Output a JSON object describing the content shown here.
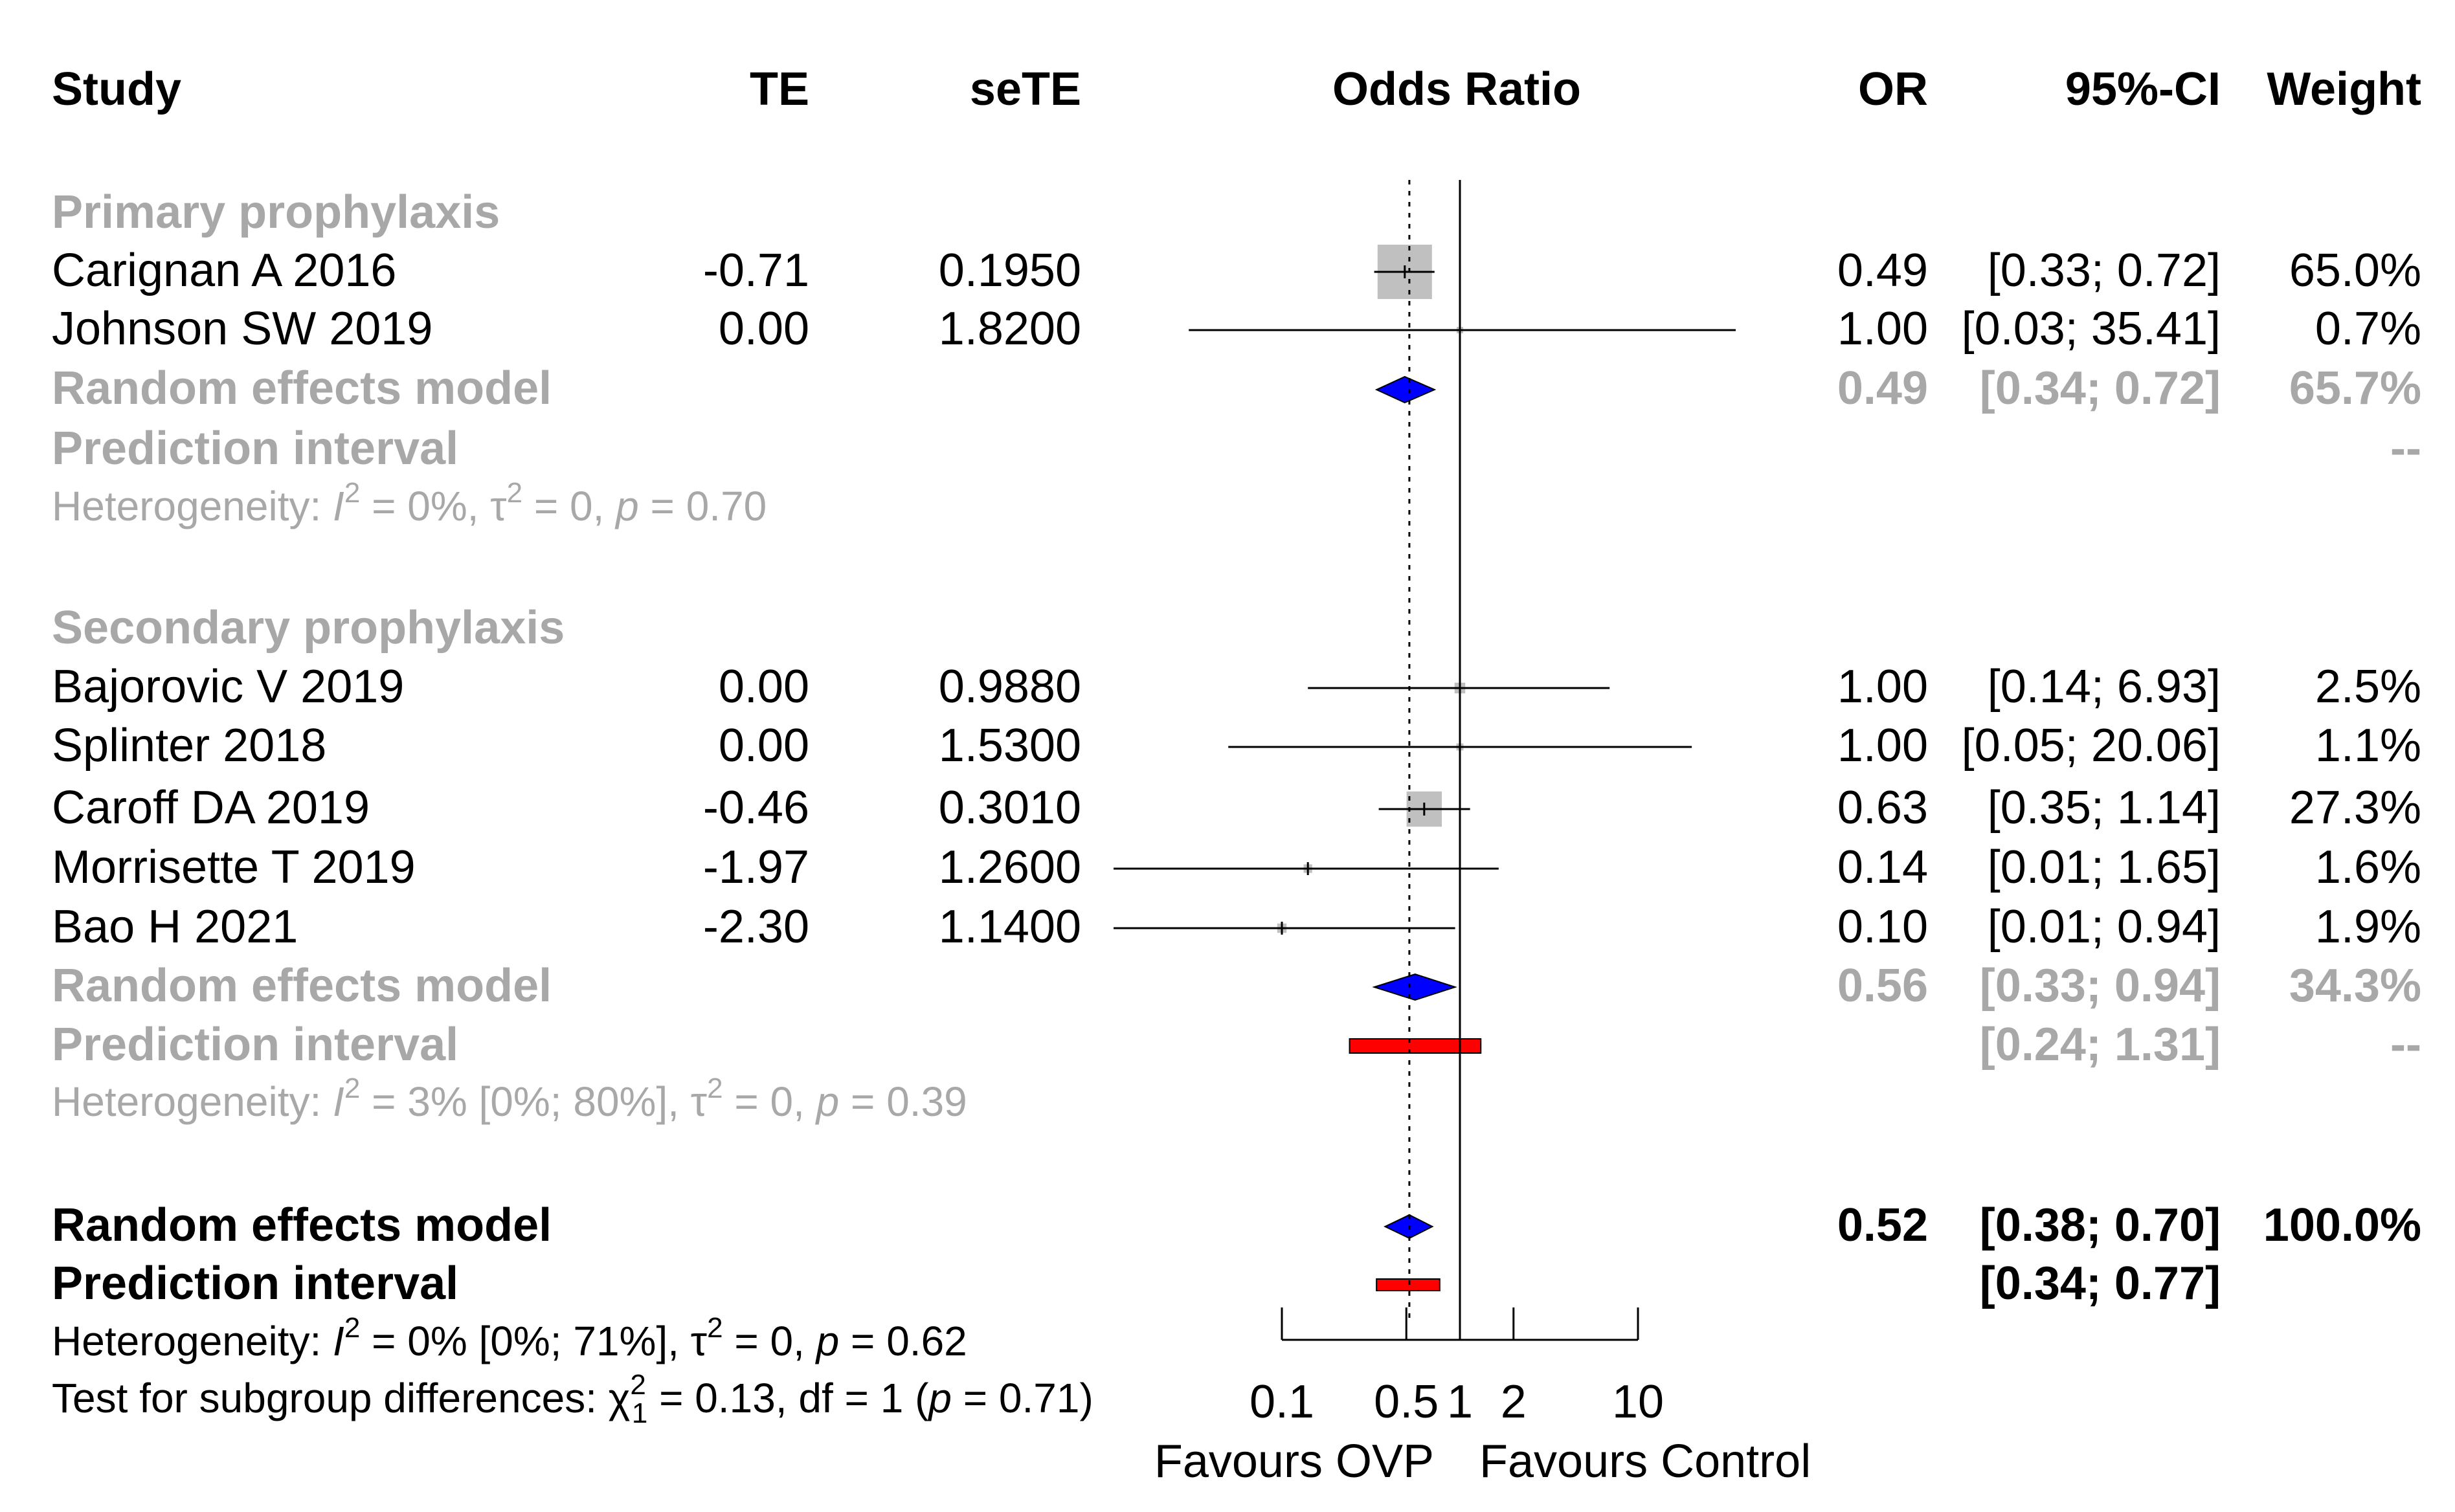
{
  "chart_data": {
    "type": "forest",
    "title": "",
    "columns": {
      "study": "Study",
      "te": "TE",
      "sete": "seTE",
      "odds_ratio": "Odds Ratio",
      "or": "OR",
      "ci": "95%-CI",
      "weight": "Weight"
    },
    "x_scale": "log",
    "xlim": [
      0.1,
      10
    ],
    "reference_value": 1,
    "overall_estimate": 0.52,
    "axis_ticks": [
      0.1,
      0.5,
      1,
      2,
      10
    ],
    "axis_tick_labels": [
      "0.1",
      "0.5",
      "1",
      "2",
      "10"
    ],
    "favours_left": "Favours OVP",
    "favours_right": "Favours Control",
    "groups": [
      {
        "name": "Primary prophylaxis",
        "studies": [
          {
            "study": "Carignan A 2016",
            "te": "-0.71",
            "sete": "0.1950",
            "or": 0.49,
            "lower": 0.33,
            "upper": 0.72,
            "or_text": "0.49",
            "ci_text": "[0.33;  0.72]",
            "weight": "65.0%",
            "weight_value": 65.0
          },
          {
            "study": "Johnson SW 2019",
            "te": "0.00",
            "sete": "1.8200",
            "or": 1.0,
            "lower": 0.03,
            "upper": 35.41,
            "or_text": "1.00",
            "ci_text": "[0.03; 35.41]",
            "weight": "0.7%",
            "weight_value": 0.7
          }
        ],
        "summary": {
          "label": "Random effects model",
          "or": 0.49,
          "lower": 0.34,
          "upper": 0.72,
          "or_text": "0.49",
          "ci_text": "[0.34;  0.72]",
          "weight": "65.7%"
        },
        "prediction": {
          "label": "Prediction interval",
          "ci_text": "",
          "weight": "--"
        },
        "heterogeneity": {
          "label": "Heterogeneity:",
          "i2": "0%",
          "tau2": "0",
          "p": "0.70"
        }
      },
      {
        "name": "Secondary prophylaxis",
        "studies": [
          {
            "study": "Bajorovic V 2019",
            "te": "0.00",
            "sete": "0.9880",
            "or": 1.0,
            "lower": 0.14,
            "upper": 6.93,
            "or_text": "1.00",
            "ci_text": "[0.14;  6.93]",
            "weight": "2.5%",
            "weight_value": 2.5
          },
          {
            "study": "Splinter 2018",
            "te": "0.00",
            "sete": "1.5300",
            "or": 1.0,
            "lower": 0.05,
            "upper": 20.06,
            "or_text": "1.00",
            "ci_text": "[0.05; 20.06]",
            "weight": "1.1%",
            "weight_value": 1.1
          },
          {
            "study": "Caroff DA 2019",
            "te": "-0.46",
            "sete": "0.3010",
            "or": 0.63,
            "lower": 0.35,
            "upper": 1.14,
            "or_text": "0.63",
            "ci_text": "[0.35;  1.14]",
            "weight": "27.3%",
            "weight_value": 27.3
          },
          {
            "study": "Morrisette T 2019",
            "te": "-1.97",
            "sete": "1.2600",
            "or": 0.14,
            "lower": 0.01,
            "upper": 1.65,
            "or_text": "0.14",
            "ci_text": "[0.01;  1.65]",
            "weight": "1.6%",
            "weight_value": 1.6
          },
          {
            "study": "Bao H 2021",
            "te": "-2.30",
            "sete": "1.1400",
            "or": 0.1,
            "lower": 0.01,
            "upper": 0.94,
            "or_text": "0.10",
            "ci_text": "[0.01;  0.94]",
            "weight": "1.9%",
            "weight_value": 1.9
          }
        ],
        "summary": {
          "label": "Random effects model",
          "or": 0.56,
          "lower": 0.33,
          "upper": 0.94,
          "or_text": "0.56",
          "ci_text": "[0.33;  0.94]",
          "weight": "34.3%"
        },
        "prediction": {
          "label": "Prediction interval",
          "lower": 0.24,
          "upper": 1.31,
          "ci_text": "[0.24;  1.31]",
          "weight": "--"
        },
        "heterogeneity": {
          "label": "Heterogeneity:",
          "i2": "3% [0%; 80%]",
          "tau2": "0",
          "p": "0.39"
        }
      }
    ],
    "overall": {
      "summary": {
        "label": "Random effects model",
        "or": 0.52,
        "lower": 0.38,
        "upper": 0.7,
        "or_text": "0.52",
        "ci_text": "[0.38;  0.70]",
        "weight": "100.0%"
      },
      "prediction": {
        "label": "Prediction interval",
        "lower": 0.34,
        "upper": 0.77,
        "ci_text": "[0.34;  0.77]"
      },
      "heterogeneity": {
        "label": "Heterogeneity:",
        "i2": "0% [0%; 71%]",
        "tau2": "0",
        "p": "0.62"
      },
      "subgroup_test": {
        "label": "Test for subgroup differences:",
        "chi2": "0.13",
        "df_label": "df = 1",
        "p": "0.71"
      }
    },
    "colors": {
      "text": "#000000",
      "subgroup_text": "#a8a8a8",
      "square": "#c0c0c0",
      "diamond": "#0000ff",
      "prediction_bar": "#ff0000"
    }
  }
}
